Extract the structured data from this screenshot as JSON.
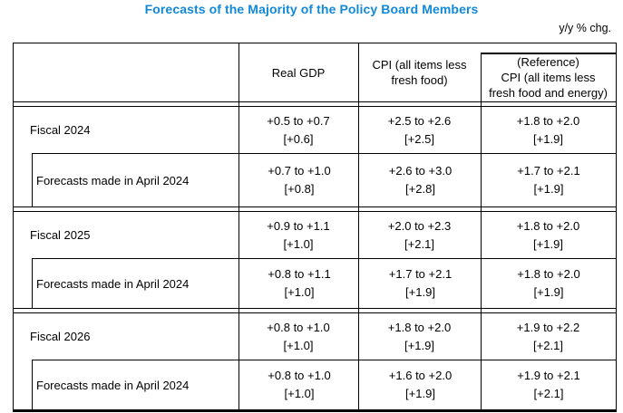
{
  "title": "Forecasts of the Majority of the Policy Board Members",
  "unit_note": "y/y % chg.",
  "colors": {
    "title": "#1289d8",
    "border": "#000000",
    "text": "#000000"
  },
  "table": {
    "header": {
      "label": "",
      "gdp": "Real GDP",
      "cpi_line1": "CPI (all items less",
      "cpi_line2": "fresh food)",
      "ref_line1": "(Reference)",
      "ref_line2": "CPI (all items less",
      "ref_line3": "fresh food and energy)"
    },
    "groups": [
      {
        "main": {
          "label": "Fiscal 2024",
          "gdp_range": "+0.5 to +0.7",
          "gdp_median": "[+0.6]",
          "cpi_range": "+2.5 to +2.6",
          "cpi_median": "[+2.5]",
          "ref_range": "+1.8 to +2.0",
          "ref_median": "[+1.9]"
        },
        "sub": {
          "label": "Forecasts made in April 2024",
          "gdp_range": "+0.7 to +1.0",
          "gdp_median": "[+0.8]",
          "cpi_range": "+2.6 to +3.0",
          "cpi_median": "[+2.8]",
          "ref_range": "+1.7 to +2.1",
          "ref_median": "[+1.9]"
        }
      },
      {
        "main": {
          "label": "Fiscal 2025",
          "gdp_range": "+0.9 to +1.1",
          "gdp_median": "[+1.0]",
          "cpi_range": "+2.0 to +2.3",
          "cpi_median": "[+2.1]",
          "ref_range": "+1.8 to +2.0",
          "ref_median": "[+1.9]"
        },
        "sub": {
          "label": "Forecasts made in April 2024",
          "gdp_range": "+0.8 to +1.1",
          "gdp_median": "[+1.0]",
          "cpi_range": "+1.7 to +2.1",
          "cpi_median": "[+1.9]",
          "ref_range": "+1.8 to +2.0",
          "ref_median": "[+1.9]"
        }
      },
      {
        "main": {
          "label": "Fiscal 2026",
          "gdp_range": "+0.8 to +1.0",
          "gdp_median": "[+1.0]",
          "cpi_range": "+1.8 to +2.0",
          "cpi_median": "[+1.9]",
          "ref_range": "+1.9 to +2.2",
          "ref_median": "[+2.1]"
        },
        "sub": {
          "label": "Forecasts made in April 2024",
          "gdp_range": "+0.8 to +1.0",
          "gdp_median": "[+1.0]",
          "cpi_range": "+1.6 to +2.0",
          "cpi_median": "[+1.9]",
          "ref_range": "+1.9 to +2.1",
          "ref_median": "[+2.1]"
        }
      }
    ]
  }
}
